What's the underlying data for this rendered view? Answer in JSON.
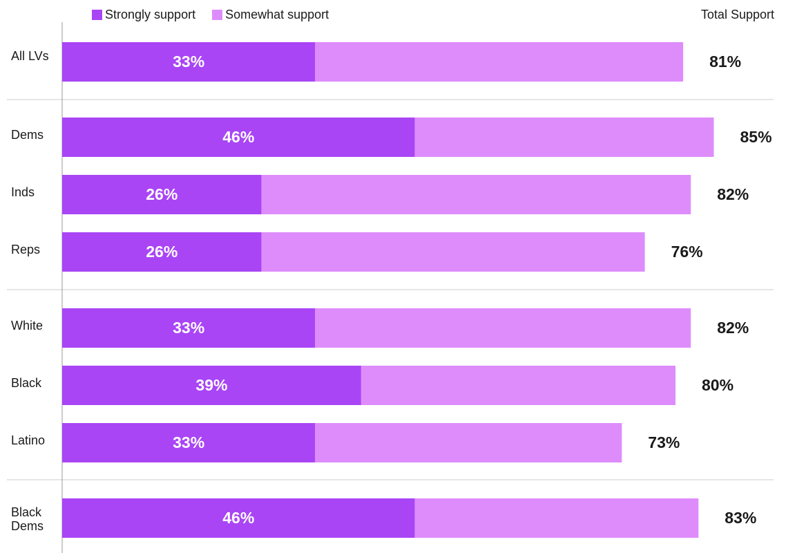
{
  "colors": {
    "strongly": "#A945F5",
    "somewhat": "#DE8CFC",
    "axis": "#9a9a9a",
    "separator": "#cccccc"
  },
  "legend": {
    "strongly_label": "Strongly support",
    "somewhat_label": "Somewhat support"
  },
  "total_header": "Total Support",
  "chart_data": {
    "type": "bar",
    "orientation": "horizontal",
    "stacked": true,
    "title": "",
    "categories": [
      "All LVs",
      "Dems",
      "Inds",
      "Reps",
      "White",
      "Black",
      "Latino",
      "Black Dems"
    ],
    "groups": [
      [
        "All LVs"
      ],
      [
        "Dems",
        "Inds",
        "Reps"
      ],
      [
        "White",
        "Black",
        "Latino"
      ],
      [
        "Black Dems"
      ]
    ],
    "series": [
      {
        "name": "Strongly support",
        "values": [
          33,
          46,
          26,
          26,
          33,
          39,
          33,
          46
        ]
      },
      {
        "name": "Somewhat support",
        "values": [
          48,
          39,
          56,
          50,
          49,
          41,
          40,
          37
        ]
      }
    ],
    "totals": [
      81,
      85,
      82,
      76,
      82,
      80,
      73,
      83
    ],
    "strongly_labels": [
      "33%",
      "46%",
      "26%",
      "26%",
      "33%",
      "39%",
      "33%",
      "46%"
    ],
    "total_labels": [
      "81%",
      "85%",
      "82%",
      "76%",
      "82%",
      "80%",
      "73%",
      "83%"
    ],
    "xlim": [
      0,
      100
    ],
    "grid": false,
    "legend_position": "top-left"
  }
}
